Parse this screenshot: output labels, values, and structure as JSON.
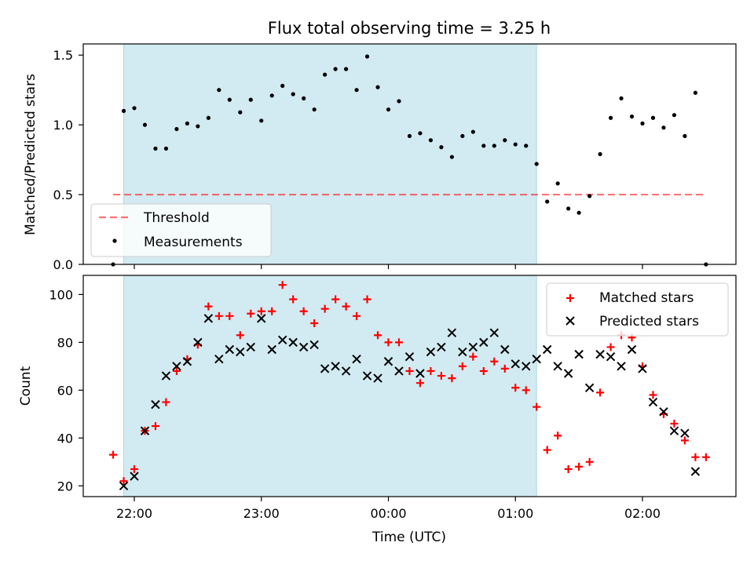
{
  "title": "Flux total observing time = 3.25 h",
  "xlabel": "Time (UTC)",
  "x_ticks": [
    "22:00",
    "23:00",
    "00:00",
    "01:00",
    "02:00"
  ],
  "colors": {
    "shade": "#add8e6",
    "threshold": "#ff0000",
    "measurements": "#000000",
    "matched": "#ff0000",
    "predicted": "#000000"
  },
  "chart_data": [
    {
      "type": "scatter",
      "ylabel": "Matched/Predicted stars",
      "ylim": [
        0,
        1.58
      ],
      "y_ticks": [
        "0.0",
        "0.5",
        "1.0",
        "1.5"
      ],
      "shaded_region": [
        "21:55",
        "01:10"
      ],
      "legend": {
        "placement": "lower-left",
        "entries": [
          "Threshold",
          "Measurements"
        ]
      },
      "threshold": {
        "name": "Threshold",
        "value": 0.5,
        "x": [
          "21:50",
          "02:30"
        ]
      },
      "series": [
        {
          "name": "Measurements",
          "x": [
            "21:50",
            "21:55",
            "22:00",
            "22:05",
            "22:10",
            "22:15",
            "22:20",
            "22:25",
            "22:30",
            "22:35",
            "22:40",
            "22:45",
            "22:50",
            "22:55",
            "23:00",
            "23:05",
            "23:10",
            "23:15",
            "23:20",
            "23:25",
            "23:30",
            "23:35",
            "23:40",
            "23:45",
            "23:50",
            "23:55",
            "00:00",
            "00:05",
            "00:10",
            "00:15",
            "00:20",
            "00:25",
            "00:30",
            "00:35",
            "00:40",
            "00:45",
            "00:50",
            "00:55",
            "01:00",
            "01:05",
            "01:10",
            "01:15",
            "01:20",
            "01:25",
            "01:30",
            "01:35",
            "01:40",
            "01:45",
            "01:50",
            "01:55",
            "02:00",
            "02:05",
            "02:10",
            "02:15",
            "02:20",
            "02:25",
            "02:30"
          ],
          "y": [
            0.0,
            1.1,
            1.12,
            1.0,
            0.83,
            0.83,
            0.97,
            1.01,
            0.99,
            1.05,
            1.25,
            1.18,
            1.09,
            1.18,
            1.03,
            1.21,
            1.28,
            1.22,
            1.19,
            1.11,
            1.36,
            1.4,
            1.4,
            1.25,
            1.49,
            1.27,
            1.11,
            1.17,
            0.92,
            0.94,
            0.89,
            0.84,
            0.77,
            0.92,
            0.95,
            0.85,
            0.85,
            0.89,
            0.86,
            0.85,
            0.72,
            0.45,
            0.58,
            0.4,
            0.37,
            0.49,
            0.79,
            1.05,
            1.19,
            1.06,
            1.01,
            1.05,
            0.98,
            1.07,
            0.92,
            1.23,
            0.0
          ]
        }
      ]
    },
    {
      "type": "scatter",
      "ylabel": "Count",
      "ylim": [
        15.5,
        108
      ],
      "y_ticks": [
        "20",
        "40",
        "60",
        "80",
        "100"
      ],
      "shaded_region": [
        "21:55",
        "01:10"
      ],
      "legend": {
        "placement": "top-right",
        "entries": [
          "Matched stars",
          "Predicted stars"
        ]
      },
      "series": [
        {
          "name": "Matched stars",
          "x": [
            "21:50",
            "21:55",
            "22:00",
            "22:05",
            "22:10",
            "22:15",
            "22:20",
            "22:25",
            "22:30",
            "22:35",
            "22:40",
            "22:45",
            "22:50",
            "22:55",
            "23:00",
            "23:05",
            "23:10",
            "23:15",
            "23:20",
            "23:25",
            "23:30",
            "23:35",
            "23:40",
            "23:45",
            "23:50",
            "23:55",
            "00:00",
            "00:05",
            "00:10",
            "00:15",
            "00:20",
            "00:25",
            "00:30",
            "00:35",
            "00:40",
            "00:45",
            "00:50",
            "00:55",
            "01:00",
            "01:05",
            "01:10",
            "01:15",
            "01:20",
            "01:25",
            "01:30",
            "01:35",
            "01:40",
            "01:45",
            "01:50",
            "01:55",
            "02:00",
            "02:05",
            "02:10",
            "02:15",
            "02:20",
            "02:25",
            "02:30"
          ],
          "y": [
            33,
            22,
            27,
            43,
            45,
            55,
            68,
            73,
            79,
            95,
            91,
            91,
            83,
            92,
            93,
            93,
            104,
            98,
            93,
            88,
            94,
            98,
            95,
            91,
            98,
            83,
            80,
            80,
            68,
            63,
            68,
            66,
            65,
            70,
            74,
            68,
            72,
            69,
            61,
            60,
            53,
            35,
            41,
            27,
            28,
            30,
            59,
            78,
            83,
            82,
            70,
            58,
            50,
            46,
            39,
            32,
            32
          ]
        },
        {
          "name": "Predicted stars",
          "x": [
            "21:55",
            "22:00",
            "22:05",
            "22:10",
            "22:15",
            "22:20",
            "22:25",
            "22:30",
            "22:35",
            "22:40",
            "22:45",
            "22:50",
            "22:55",
            "23:00",
            "23:05",
            "23:10",
            "23:15",
            "23:20",
            "23:25",
            "23:30",
            "23:35",
            "23:40",
            "23:45",
            "23:50",
            "23:55",
            "00:00",
            "00:05",
            "00:10",
            "00:15",
            "00:20",
            "00:25",
            "00:30",
            "00:35",
            "00:40",
            "00:45",
            "00:50",
            "00:55",
            "01:00",
            "01:05",
            "01:10",
            "01:15",
            "01:20",
            "01:25",
            "01:30",
            "01:35",
            "01:40",
            "01:45",
            "01:50",
            "01:55",
            "02:00",
            "02:05",
            "02:10",
            "02:15",
            "02:20",
            "02:25"
          ],
          "y": [
            20,
            24,
            43,
            54,
            66,
            70,
            72,
            80,
            90,
            73,
            77,
            76,
            78,
            90,
            77,
            81,
            80,
            78,
            79,
            69,
            70,
            68,
            73,
            66,
            65,
            72,
            68,
            74,
            67,
            76,
            78,
            84,
            76,
            78,
            80,
            84,
            77,
            71,
            70,
            73,
            77,
            70,
            67,
            75,
            61,
            75,
            74,
            70,
            77,
            69,
            55,
            51,
            43,
            42,
            26
          ]
        }
      ]
    }
  ]
}
